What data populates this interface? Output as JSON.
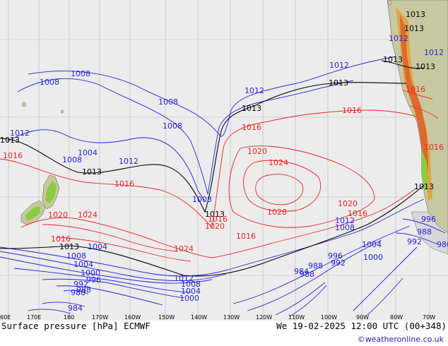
{
  "map": {
    "longitude_labels": [
      "60E",
      "170E",
      "180",
      "170W",
      "160W",
      "150W",
      "140W",
      "130W",
      "120W",
      "110W",
      "100W",
      "90W",
      "80W",
      "70W"
    ],
    "isobar_labels": {
      "blue": [
        "1008",
        "1008",
        "1008",
        "1008",
        "1012",
        "1012",
        "1004",
        "1008",
        "1012",
        "1012",
        "1008",
        "1004",
        "1008",
        "1004",
        "1000",
        "996",
        "992",
        "988",
        "984",
        "1000",
        "1004",
        "1008",
        "1012",
        "1000",
        "996",
        "992",
        "988",
        "984",
        "980",
        "1012",
        "1008",
        "1004",
        "996",
        "992",
        "988",
        "988",
        "988",
        "1012",
        "1012"
      ],
      "black": [
        "1013",
        "1013",
        "1013",
        "1013",
        "1013",
        "1013",
        "1013",
        "1013",
        "1013",
        "1013",
        "1013"
      ],
      "red": [
        "1016",
        "1016",
        "1016",
        "1016",
        "1020",
        "1024",
        "1028",
        "1020",
        "1016",
        "1020",
        "1024",
        "1016",
        "1020",
        "1024",
        "1016",
        "1016",
        "1016",
        "1016"
      ]
    },
    "colors": {
      "high": "#ee2222",
      "low": "#2222dd",
      "reference": "#000000",
      "land": "#c8c8a0",
      "sea": "#ececec",
      "highland": "#e0c000",
      "terrain_green": "#88cc44"
    }
  },
  "footer": {
    "title": "Surface pressure [hPa] ECMWF",
    "timestamp": "We 19-02-2025 12:00 UTC (00+348)",
    "credit": "©weatheronline.co.uk"
  }
}
